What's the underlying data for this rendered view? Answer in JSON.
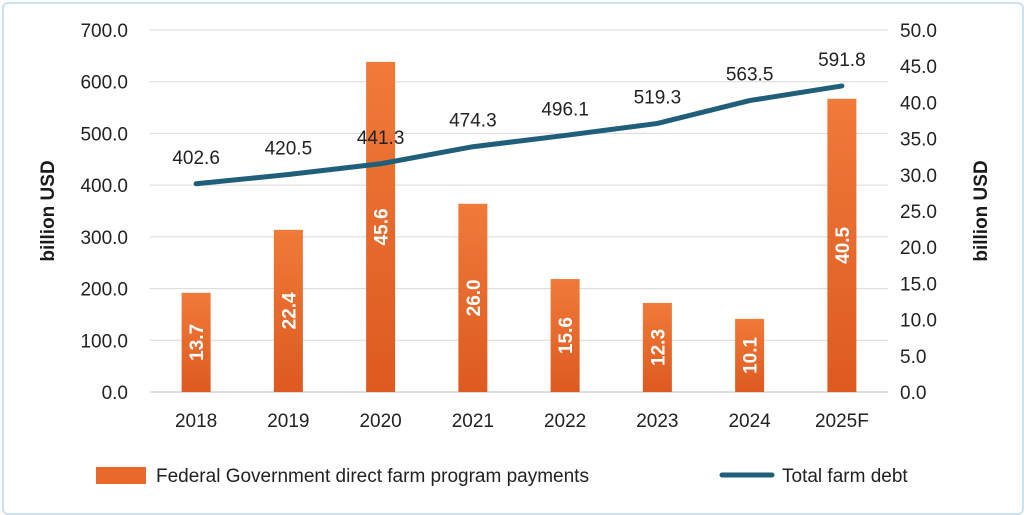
{
  "chart_data": {
    "type": "bar",
    "categories": [
      "2018",
      "2019",
      "2020",
      "2021",
      "2022",
      "2023",
      "2024",
      "2025F"
    ],
    "series": [
      {
        "name": "Federal Government direct farm program payments",
        "type": "bar",
        "axis": "right",
        "values": [
          13.7,
          22.4,
          45.6,
          26.0,
          15.6,
          12.3,
          10.1,
          40.5
        ],
        "labels": [
          "13.7",
          "22.4",
          "45.6",
          "26.0",
          "15.6",
          "12.3",
          "10.1",
          "40.5"
        ],
        "color": "#e8692a"
      },
      {
        "name": "Total farm debt",
        "type": "line",
        "axis": "left",
        "values": [
          402.6,
          420.5,
          441.3,
          474.3,
          496.1,
          519.3,
          563.5,
          591.8
        ],
        "labels": [
          "402.6",
          "420.5",
          "441.3",
          "474.3",
          "496.1",
          "519.3",
          "563.5",
          "591.8"
        ],
        "color": "#1f5f7a"
      }
    ],
    "ylabel": "billion USD",
    "y2label": "billion USD",
    "ylim": [
      0,
      700
    ],
    "y2lim": [
      0,
      50
    ],
    "yticks": [
      "0.0",
      "100.0",
      "200.0",
      "300.0",
      "400.0",
      "500.0",
      "600.0",
      "700.0"
    ],
    "y2ticks": [
      "0.0",
      "5.0",
      "10.0",
      "15.0",
      "20.0",
      "25.0",
      "30.0",
      "35.0",
      "40.0",
      "45.0",
      "50.0"
    ],
    "grid": true,
    "legend": "bottom"
  }
}
